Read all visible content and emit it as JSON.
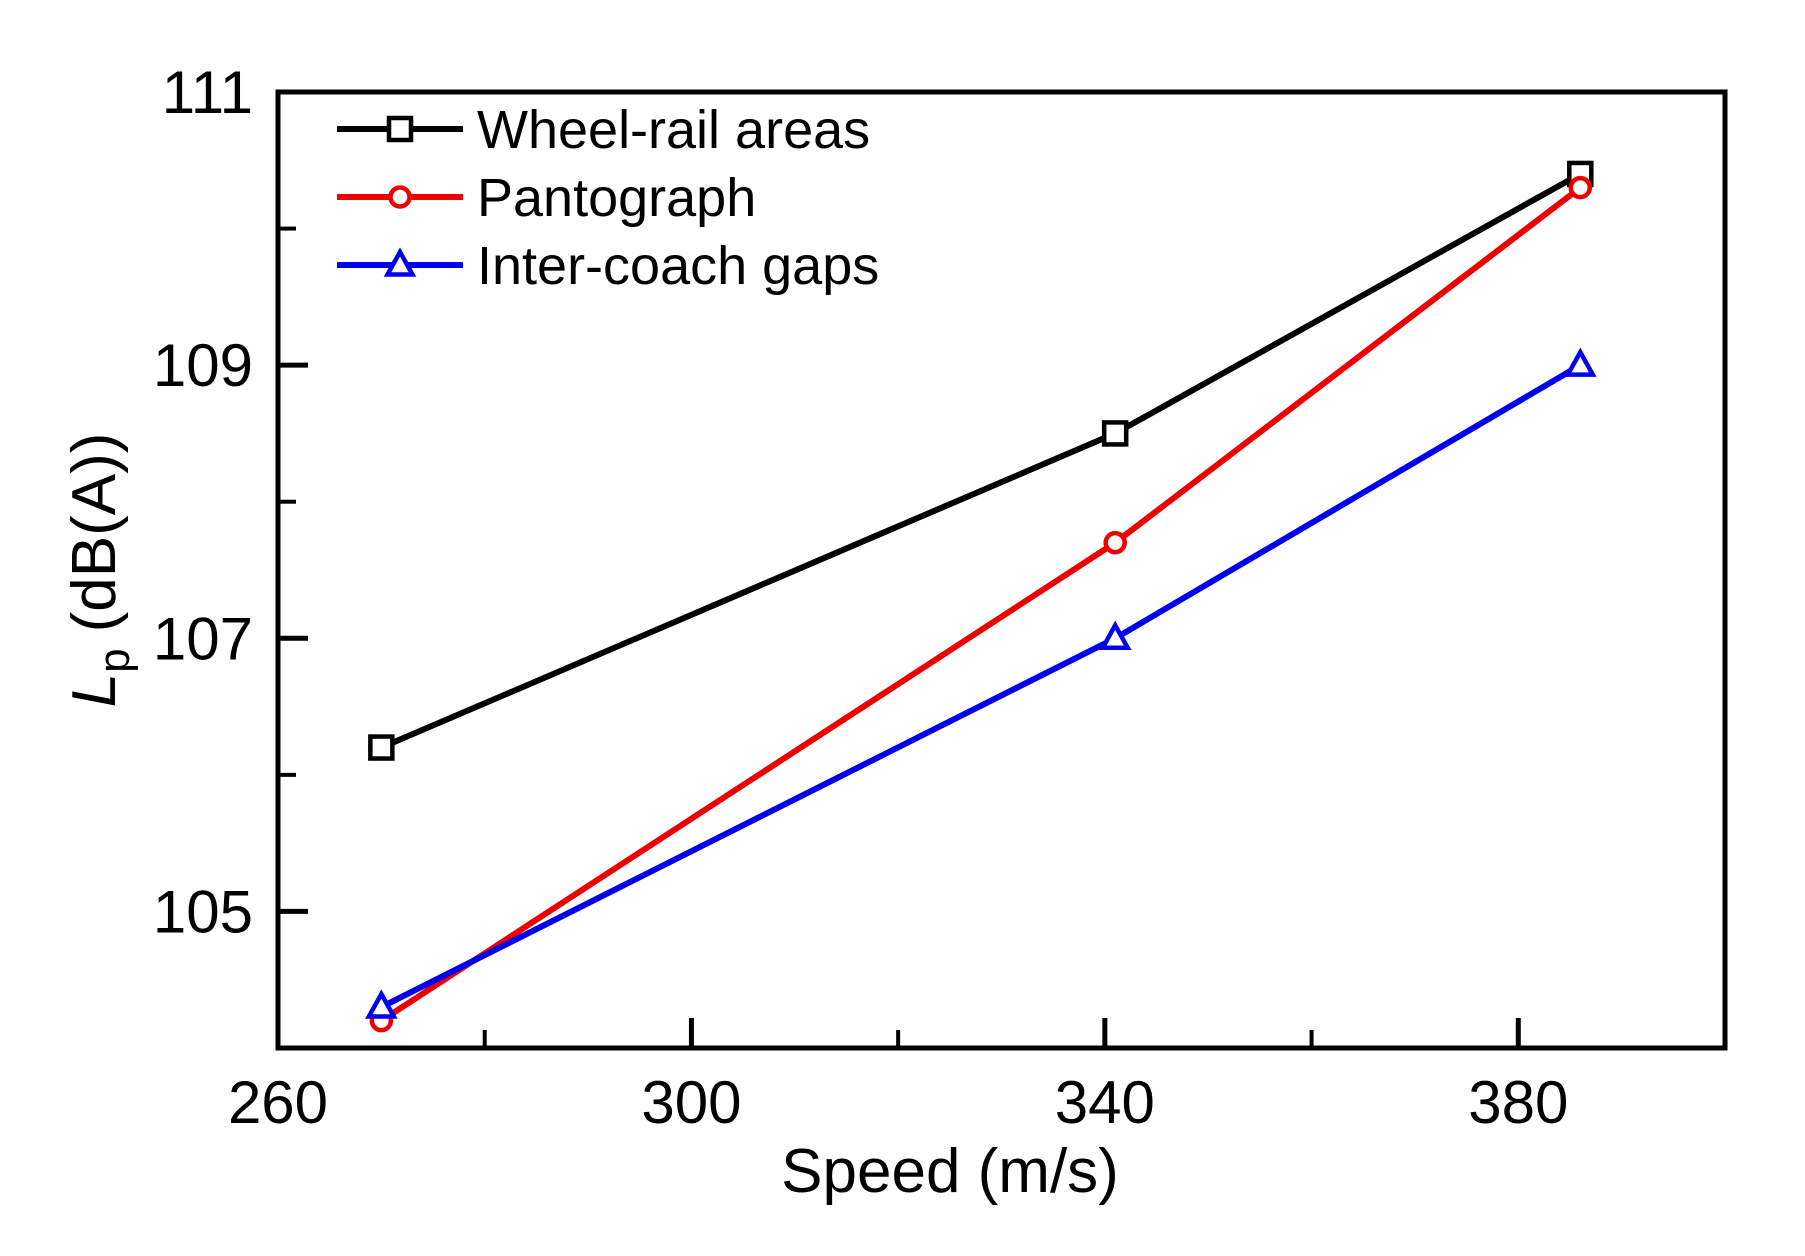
{
  "figure": {
    "background": "#ffffff",
    "axis_color": "#000000"
  },
  "chart_data": {
    "type": "line",
    "title": "",
    "xlabel": "Speed (m/s)",
    "ylabel": "Lp (dB(A))",
    "ylabel_parts": {
      "symbol": "L",
      "subscript": "p",
      "unit": "(dB(A))"
    },
    "xlim": [
      260,
      400
    ],
    "ylim": [
      104,
      111
    ],
    "x_major_ticks": [
      260,
      300,
      340,
      380
    ],
    "x_minor_ticks": [
      280,
      320,
      360,
      400
    ],
    "y_major_ticks": [
      105,
      107,
      109,
      111
    ],
    "y_minor_ticks": [
      106,
      108,
      110
    ],
    "grid": false,
    "legend_position": "top-left-inside",
    "x": [
      270,
      341,
      386
    ],
    "series": [
      {
        "name": "Wheel-rail areas",
        "color": "#000000",
        "marker": "square",
        "values": [
          106.2,
          108.5,
          110.4
        ]
      },
      {
        "name": "Pantograph",
        "color": "#ee0000",
        "marker": "circle",
        "values": [
          104.2,
          107.7,
          110.3
        ]
      },
      {
        "name": "Inter-coach gaps",
        "color": "#0000ee",
        "marker": "triangle",
        "values": [
          104.3,
          107.0,
          109.0
        ]
      }
    ]
  }
}
